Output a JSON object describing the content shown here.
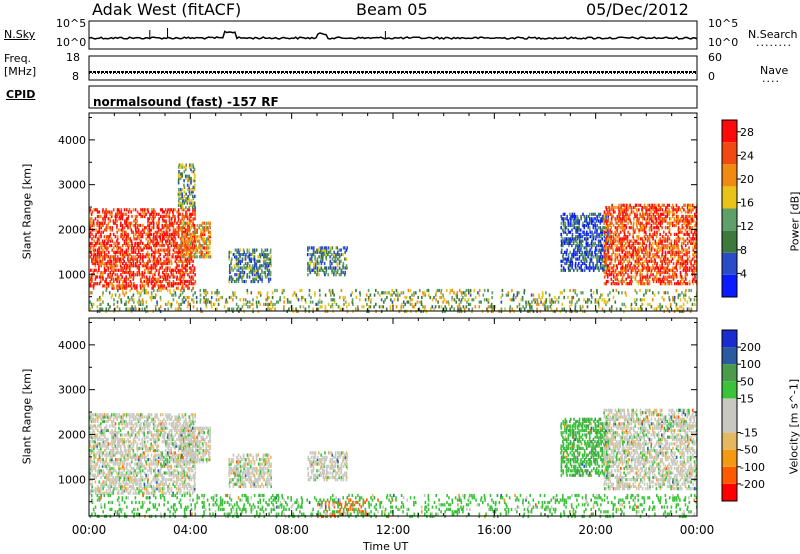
{
  "header": {
    "station": "Adak West (fitACF)",
    "beam": "Beam 05",
    "date": "05/Dec/2012"
  },
  "noise_panel": {
    "left_label": "N.Sky",
    "right_label": "N.Search",
    "tick_top": "10^5",
    "tick_bottom": "10^0",
    "right_legend": "........"
  },
  "freq_panel": {
    "left_label_line1": "Freq.",
    "left_label_line2": "[MHz]",
    "left_tick_top": "18",
    "left_tick_bottom": "8",
    "right_label": "Nave",
    "right_tick_top": "60",
    "right_tick_bottom": "0",
    "right_legend": "...."
  },
  "cpid_panel": {
    "label": "CPID",
    "text": "normalsound (fast) -157 RF"
  },
  "colors": {
    "power_scale": [
      "#0a1cff",
      "#2a4cc8",
      "#3b7a3c",
      "#5fa06a",
      "#e9c21a",
      "#f08a10",
      "#f04a10",
      "#ff0a0a"
    ],
    "velocity_scale": [
      "#ff0000",
      "#ff5a00",
      "#f39a12",
      "#e4b860",
      "#c8c8c0",
      "#c8c8c0",
      "#3ac33a",
      "#4a9c4a",
      "#2c5aa0",
      "#1a2cd0"
    ]
  },
  "chart_data": [
    {
      "type": "heatmap",
      "title": "",
      "xlabel": "Time UT",
      "ylabel": "Slant Range [km]",
      "x_ticks": [
        "00:00",
        "04:00",
        "08:00",
        "12:00",
        "16:00",
        "20:00",
        "00:00"
      ],
      "y_ticks": [
        "1000",
        "2000",
        "3000",
        "4000"
      ],
      "xlim_hours": [
        0,
        24
      ],
      "ylim_km": [
        180,
        4600
      ],
      "colorbar": {
        "label": "Power [dB]",
        "ticks": [
          "4",
          "8",
          "12",
          "16",
          "20",
          "24",
          "28"
        ],
        "range": [
          0,
          30
        ]
      },
      "regions": [
        {
          "t0": 0.0,
          "t1": 4.2,
          "r0": 700,
          "r1": 2500,
          "level": 27
        },
        {
          "t0": 3.6,
          "t1": 4.8,
          "r0": 1400,
          "r1": 2200,
          "level": 20
        },
        {
          "t0": 3.5,
          "t1": 4.2,
          "r0": 2500,
          "r1": 3500,
          "level": 12
        },
        {
          "t0": 5.5,
          "t1": 7.2,
          "r0": 850,
          "r1": 1600,
          "level": 10
        },
        {
          "t0": 8.6,
          "t1": 10.2,
          "r0": 1000,
          "r1": 1650,
          "level": 10
        },
        {
          "t0": 18.6,
          "t1": 20.5,
          "r0": 1100,
          "r1": 2400,
          "level": 6
        },
        {
          "t0": 20.3,
          "t1": 24.0,
          "r0": 800,
          "r1": 2600,
          "level": 25
        },
        {
          "t0": 0.0,
          "t1": 24.0,
          "r0": 180,
          "r1": 700,
          "level": 14
        }
      ]
    },
    {
      "type": "heatmap",
      "title": "",
      "xlabel": "Time UT",
      "ylabel": "Slant Range [km]",
      "x_ticks": [
        "00:00",
        "04:00",
        "08:00",
        "12:00",
        "16:00",
        "20:00",
        "00:00"
      ],
      "y_ticks": [
        "1000",
        "2000",
        "3000",
        "4000"
      ],
      "xlim_hours": [
        0,
        24
      ],
      "ylim_km": [
        180,
        4600
      ],
      "colorbar": {
        "label": "Velocity [m s^-1]",
        "ticks": [
          "-200",
          "-100",
          "-50",
          "-15",
          "15",
          "50",
          "100",
          "200"
        ],
        "range": [
          -250,
          250
        ]
      },
      "regions": [
        {
          "t0": 0.0,
          "t1": 4.2,
          "r0": 700,
          "r1": 2500,
          "level": 0
        },
        {
          "t0": 3.6,
          "t1": 4.8,
          "r0": 1400,
          "r1": 2200,
          "level": 0
        },
        {
          "t0": 5.5,
          "t1": 7.2,
          "r0": 850,
          "r1": 1600,
          "level": 0
        },
        {
          "t0": 8.6,
          "t1": 10.2,
          "r0": 1000,
          "r1": 1650,
          "level": 0
        },
        {
          "t0": 18.6,
          "t1": 20.5,
          "r0": 1100,
          "r1": 2400,
          "level": 40
        },
        {
          "t0": 20.3,
          "t1": 24.0,
          "r0": 800,
          "r1": 2600,
          "level": 0
        },
        {
          "t0": 9.0,
          "t1": 11.0,
          "r0": 180,
          "r1": 600,
          "level": -120
        },
        {
          "t0": 0.0,
          "t1": 24.0,
          "r0": 180,
          "r1": 700,
          "level": 30
        }
      ]
    }
  ]
}
